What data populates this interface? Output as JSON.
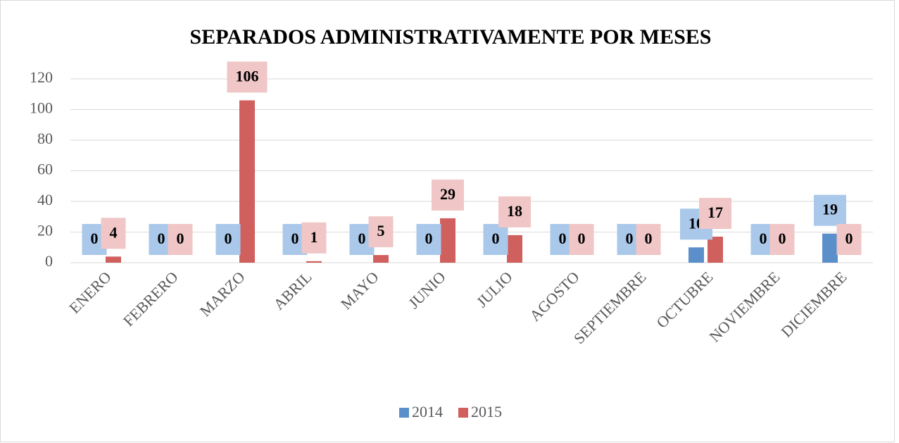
{
  "chart_data": {
    "type": "bar",
    "title": "SEPARADOS ADMINISTRATIVAMENTE POR MESES",
    "categories": [
      "ENERO",
      "FEBRERO",
      "MARZO",
      "ABRIL",
      "MAYO",
      "JUNIO",
      "JULIO",
      "AGOSTO",
      "SEPTIEMBRE",
      "OCTUBRE",
      "NOVIEMBRE",
      "DICIEMBRE"
    ],
    "series": [
      {
        "name": "2014",
        "color": "#5b8fc9",
        "label_color": "#a9c8ea",
        "values": [
          0,
          0,
          0,
          0,
          0,
          0,
          0,
          0,
          0,
          10,
          0,
          19
        ]
      },
      {
        "name": "2015",
        "color": "#d0605e",
        "label_color": "#f0c6c6",
        "values": [
          4,
          0,
          106,
          1,
          5,
          29,
          18,
          0,
          0,
          17,
          0,
          0
        ]
      }
    ],
    "ylim": [
      0,
      120
    ],
    "yticks": [
      0,
      20,
      40,
      60,
      80,
      100,
      120
    ],
    "grid": true,
    "legend": "bottom",
    "data_labels": true
  }
}
